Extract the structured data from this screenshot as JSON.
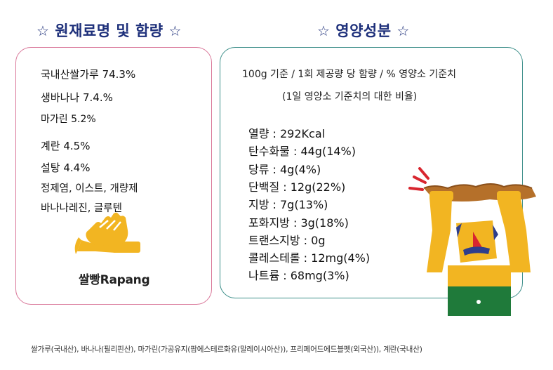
{
  "headings": {
    "ingredients": "원재료명 및 함량",
    "nutrition": "영양성분",
    "star": "☆"
  },
  "ingredients": [
    "국내산쌀가루 74.3%",
    "생바나나 7.4.%",
    "마가린 5.2%",
    "계란 4.5%",
    "설탕 4.4%",
    "정제염, 이스트, 개량제",
    "바나나레진, 글루텐"
  ],
  "brand": {
    "name": "쌀빵Rapang",
    "logo_icon": "hand-trumpet-logo-icon",
    "logo_color": "#f2b522"
  },
  "nutrition": {
    "basis": "100g 기준 / 1회 제공량 당 함량 / % 영양소 기준치",
    "note": "(1일 영양소 기준치의 대한 비율)",
    "items": [
      "열량 : 292Kcal",
      "탄수화물 : 44g(14%)",
      "당류 : 4g(4%)",
      "단백질 : 12g(22%)",
      "지방 : 7g(13%)",
      "포화지방 : 3g(18%)",
      "트랜스지방 : 0g",
      "콜레스테롤 : 12mg(4%)",
      "나트륨 : 68mg(3%)"
    ]
  },
  "mascot": {
    "icon": "strongman-lifting-bread-icon"
  },
  "footer": "쌀가루(국내산), 바나나(필리핀산), 마가린(가공유지(팜에스테르화유(말레이시아산)), 프리페어드에드블펫(외국산)), 계란(국내산)",
  "colors": {
    "heading": "#1d2f7a",
    "left_border": "#d97799",
    "right_border": "#3d8f8a",
    "accent_yellow": "#f2b522"
  }
}
